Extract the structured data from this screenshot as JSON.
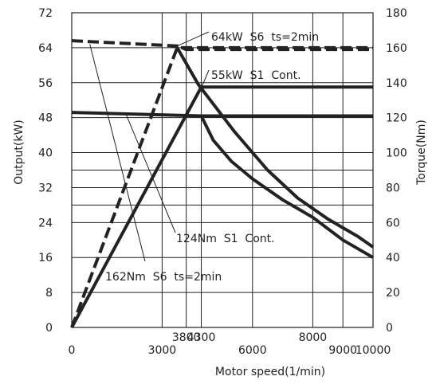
{
  "chart_data": {
    "type": "line",
    "xlabel": "Motor speed(1/min)",
    "ylabel_left": "Output(kW)",
    "ylabel_right": "Torque(Nm)",
    "xlim": [
      0,
      10000
    ],
    "ylim_left": [
      0,
      72
    ],
    "ylim_right": [
      0,
      180
    ],
    "x_ticks_bottom": [
      0,
      3000,
      6000,
      9000,
      10000
    ],
    "x_ticks_top": [
      3800,
      4300,
      8000
    ],
    "y_ticks_left": [
      0,
      8,
      16,
      24,
      32,
      40,
      48,
      56,
      64,
      72
    ],
    "y_ticks_right": [
      0,
      20,
      40,
      60,
      80,
      100,
      120,
      140,
      160,
      180
    ],
    "grid": true,
    "series": [
      {
        "name": "64kW S6 ts=2min",
        "axis": "left",
        "style": "dashed",
        "x": [
          0,
          3500,
          10000
        ],
        "y": [
          0,
          64,
          64
        ]
      },
      {
        "name": "55kW S1 Cont.",
        "axis": "left",
        "style": "solid",
        "x": [
          0,
          4300,
          10000
        ],
        "y": [
          0,
          55,
          55
        ]
      },
      {
        "name": "162Nm S6 ts=2min",
        "axis": "right",
        "style": "dashed",
        "x": [
          0,
          3500,
          3800,
          10000
        ],
        "y": [
          164,
          161,
          159,
          159
        ]
      },
      {
        "name": "",
        "axis": "right",
        "style": "solid",
        "x": [
          3500,
          4200,
          5400,
          6500,
          7500,
          8500,
          9500,
          10000
        ],
        "y": [
          160,
          139,
          112,
          90,
          74,
          62,
          52,
          46
        ]
      },
      {
        "name": "124Nm S1 Cont.",
        "axis": "right",
        "style": "solid",
        "x": [
          0,
          4300,
          10000
        ],
        "y": [
          123,
          121,
          121
        ]
      },
      {
        "name": "",
        "axis": "right",
        "style": "solid",
        "x": [
          4300,
          4700,
          5300,
          6000,
          7000,
          8000,
          9000,
          10000
        ],
        "y": [
          121,
          107,
          95,
          85,
          73,
          63,
          50,
          40
        ]
      }
    ],
    "annotations": [
      "64kW  S6  ts=2min",
      "55kW  S1  Cont.",
      "124Nm  S1  Cont.",
      "162Nm  S6  ts=2min"
    ]
  }
}
